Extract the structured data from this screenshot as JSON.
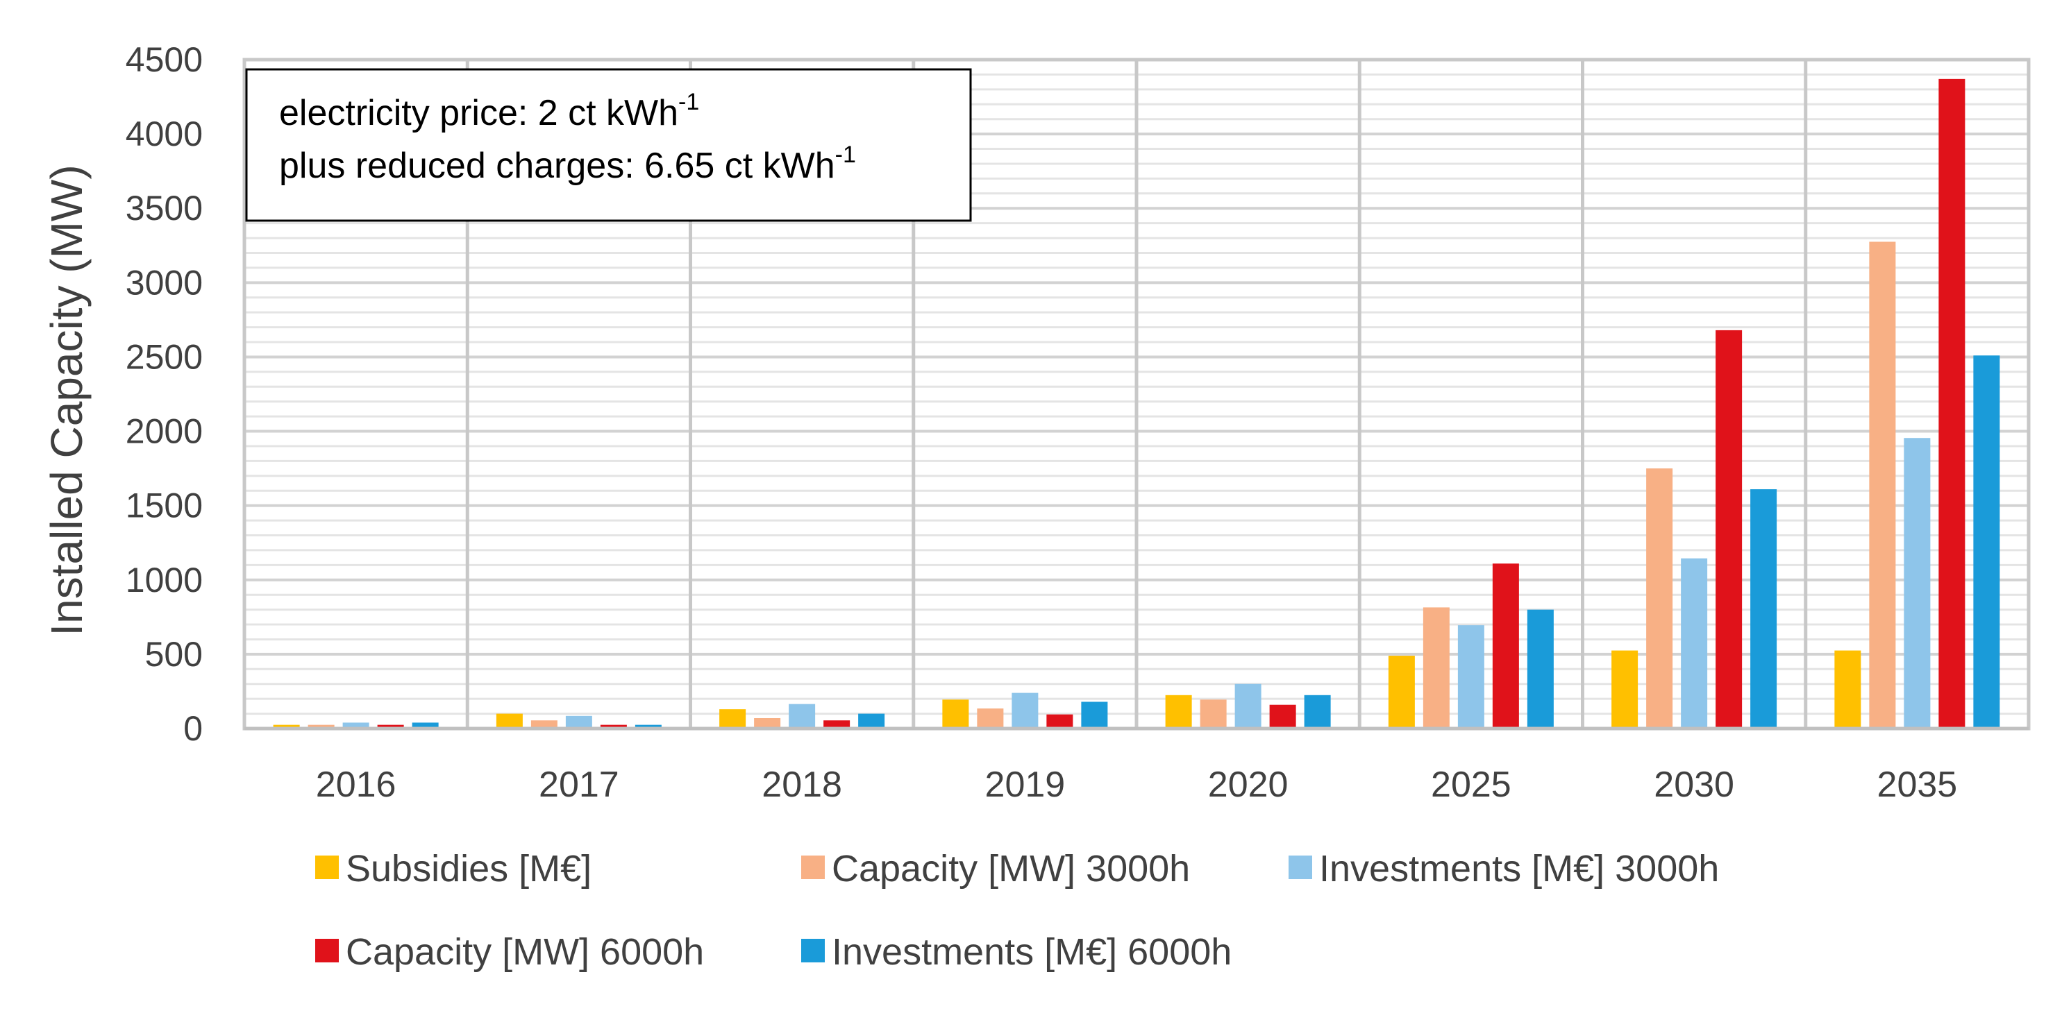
{
  "chart_data": {
    "type": "bar",
    "title": "",
    "xlabel": "",
    "ylabel": "Installed Capacity (MW)",
    "ylim": [
      0,
      4500
    ],
    "yticks": [
      0,
      500,
      1000,
      1500,
      2000,
      2500,
      3000,
      3500,
      4000,
      4500
    ],
    "minor_grid_step": 100,
    "grid": true,
    "legend_position": "bottom",
    "categories": [
      "2016",
      "2017",
      "2018",
      "2019",
      "2020",
      "2025",
      "2030",
      "2035"
    ],
    "series": [
      {
        "name": "Subsidies [M€]",
        "color": "#FFC000",
        "values": [
          25,
          100,
          130,
          195,
          225,
          490,
          525,
          525
        ]
      },
      {
        "name": "Capacity [MW] 3000h",
        "color": "#F8B085",
        "values": [
          25,
          55,
          70,
          135,
          195,
          815,
          1750,
          3275
        ]
      },
      {
        "name": "Investments [M€] 3000h",
        "color": "#8EC5EA",
        "values": [
          40,
          85,
          165,
          240,
          300,
          695,
          1145,
          1955
        ]
      },
      {
        "name": "Capacity [MW] 6000h",
        "color": "#E0121A",
        "values": [
          25,
          25,
          55,
          95,
          160,
          1110,
          2680,
          4370
        ]
      },
      {
        "name": "Investments [M€] 6000h",
        "color": "#1A9BD9",
        "values": [
          40,
          25,
          100,
          180,
          225,
          800,
          1610,
          2510
        ]
      }
    ],
    "annotation": {
      "line1": "electricity price: 2 ct kWh",
      "line1_sup": "-1",
      "line2": "plus reduced charges: 6.65 ct kWh",
      "line2_sup": "-1"
    }
  }
}
